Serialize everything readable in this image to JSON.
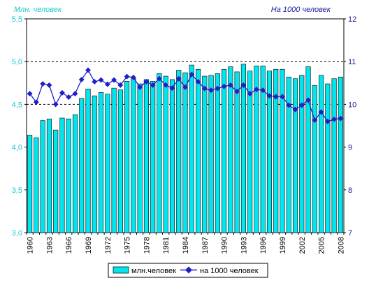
{
  "chart_data": {
    "type": "bar",
    "title": "",
    "left_axis_title": "Млн. человек",
    "right_axis_title": "На 1000 человек",
    "xlabel": "",
    "ylim_left": [
      3.0,
      5.5
    ],
    "ylim_right": [
      7,
      12
    ],
    "left_ticks": [
      "3,0",
      "3,5",
      "4,0",
      "4,5",
      "5,0",
      "5,5"
    ],
    "right_ticks": [
      "7",
      "8",
      "9",
      "10",
      "11",
      "12"
    ],
    "x_tick_labels": [
      "1960",
      "1963",
      "1966",
      "1969",
      "1972",
      "1975",
      "1978",
      "1981",
      "1984",
      "1987",
      "1990",
      "1993",
      "1996",
      "1999",
      "2002",
      "2005",
      "2008"
    ],
    "gridlines": [
      4.5,
      5.0
    ],
    "legend_placement": "bottom",
    "categories": [
      1960,
      1961,
      1962,
      1963,
      1964,
      1965,
      1966,
      1967,
      1968,
      1969,
      1970,
      1971,
      1972,
      1973,
      1974,
      1975,
      1976,
      1977,
      1978,
      1979,
      1980,
      1981,
      1982,
      1983,
      1984,
      1985,
      1986,
      1987,
      1988,
      1989,
      1990,
      1991,
      1992,
      1993,
      1994,
      1995,
      1996,
      1997,
      1998,
      1999,
      2000,
      2001,
      2002,
      2003,
      2004,
      2005,
      2006,
      2007,
      2008
    ],
    "series": [
      {
        "name": "млн.человек",
        "type": "bar",
        "axis": "left",
        "color": "#00e5ee",
        "values": [
          4.14,
          4.11,
          4.31,
          4.33,
          4.2,
          4.34,
          4.33,
          4.38,
          4.57,
          4.68,
          4.6,
          4.64,
          4.62,
          4.69,
          4.67,
          4.77,
          4.8,
          4.74,
          4.79,
          4.77,
          4.86,
          4.83,
          4.79,
          4.9,
          4.87,
          4.96,
          4.91,
          4.83,
          4.84,
          4.86,
          4.91,
          4.94,
          4.88,
          4.97,
          4.89,
          4.95,
          4.95,
          4.89,
          4.91,
          4.91,
          4.82,
          4.8,
          4.84,
          4.94,
          4.72,
          4.84,
          4.74,
          4.8,
          4.82
        ]
      },
      {
        "name": "на 1000 человек",
        "type": "line",
        "axis": "right",
        "color": "#1f1fc8",
        "values": [
          10.25,
          10.05,
          10.48,
          10.45,
          10.0,
          10.27,
          10.17,
          10.25,
          10.58,
          10.8,
          10.53,
          10.57,
          10.47,
          10.57,
          10.45,
          10.65,
          10.63,
          10.4,
          10.53,
          10.45,
          10.6,
          10.45,
          10.38,
          10.6,
          10.4,
          10.7,
          10.53,
          10.37,
          10.33,
          10.37,
          10.42,
          10.45,
          10.3,
          10.45,
          10.25,
          10.35,
          10.33,
          10.2,
          10.18,
          10.18,
          9.98,
          9.88,
          9.98,
          10.1,
          9.63,
          9.82,
          9.6,
          9.65,
          9.67
        ]
      }
    ]
  }
}
